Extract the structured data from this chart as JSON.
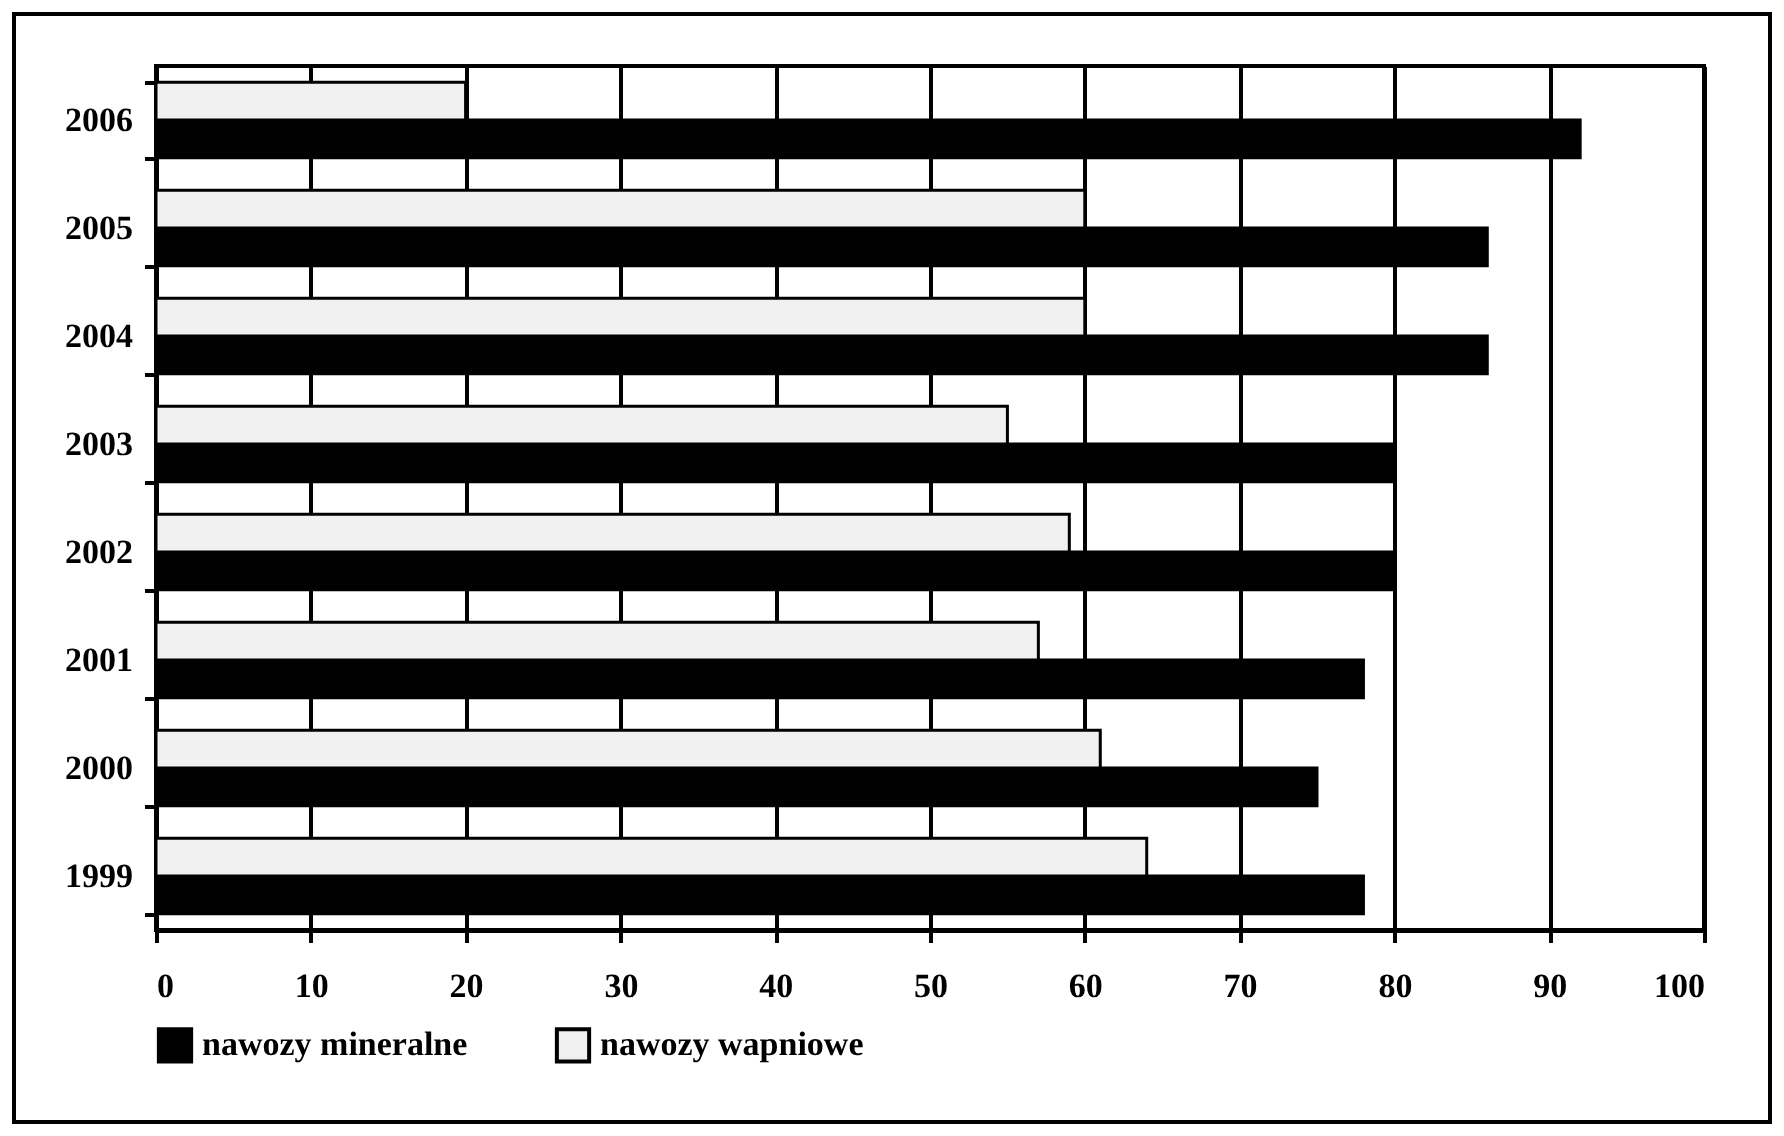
{
  "chart_data": {
    "type": "bar",
    "orientation": "horizontal",
    "categories": [
      "2006",
      "2005",
      "2004",
      "2003",
      "2002",
      "2001",
      "2000",
      "1999"
    ],
    "series": [
      {
        "name": "nawozy mineralne",
        "color": "#000000",
        "values": [
          92,
          86,
          86,
          80,
          80,
          78,
          75,
          78
        ]
      },
      {
        "name": "nawozy wapniowe",
        "color": "#f0f0f0",
        "values": [
          20,
          60,
          60,
          55,
          59,
          57,
          61,
          64
        ]
      }
    ],
    "xlim": [
      0,
      100
    ],
    "xticks": [
      0,
      10,
      20,
      30,
      40,
      50,
      60,
      70,
      80,
      90,
      100
    ],
    "grid": "x",
    "legend": "bottom"
  }
}
